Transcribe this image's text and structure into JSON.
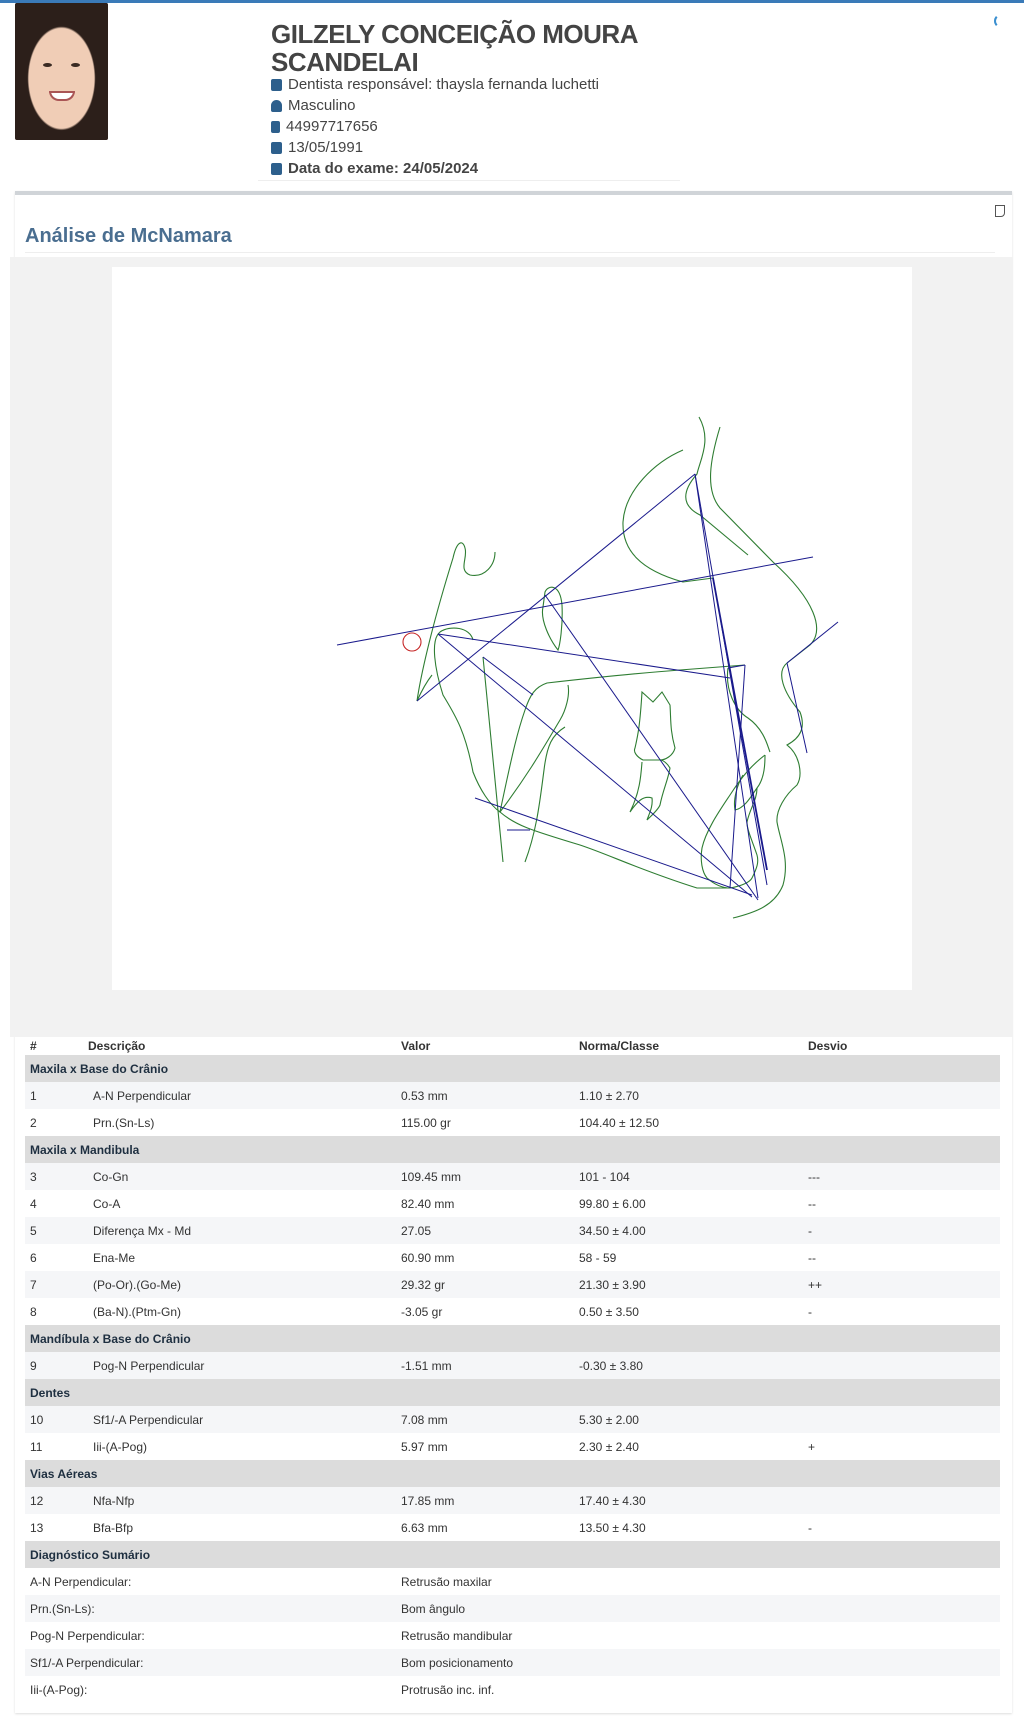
{
  "patient": {
    "name": "GILZELY CONCEIÇÃO MOURA SCANDELAI",
    "dentist": "Dentista responsável: thaysla fernanda luchetti",
    "sex": "Masculino",
    "phone": "44997717656",
    "birth": "13/05/1991",
    "exam_date": "Data do exame: 24/05/2024"
  },
  "icons": {
    "dentist": "tooth-icon",
    "sex": "user-icon",
    "phone": "mobile-icon",
    "birth": "calendar-icon",
    "exam": "calendar-icon",
    "loading": "spinner-icon",
    "doc": "document-icon"
  },
  "colors": {
    "accent": "#3a7ab8",
    "title": "#4a6e90",
    "tracing_anatomy": "#2e7d32",
    "tracing_lines": "#1a1a8c",
    "marker": "#c62828"
  },
  "card": {
    "title": "Análise de McNamara"
  },
  "table": {
    "headers": [
      "#",
      "Descrição",
      "Valor",
      "Norma/Classe",
      "Desvio"
    ],
    "groups": [
      {
        "title": "Maxila x Base do Crânio",
        "rows": [
          [
            "1",
            "A-N Perpendicular",
            "0.53 mm",
            "1.10 ± 2.70",
            ""
          ],
          [
            "2",
            "Prn.(Sn-Ls)",
            "115.00 gr",
            "104.40 ± 12.50",
            ""
          ]
        ]
      },
      {
        "title": "Maxila x Mandibula",
        "rows": [
          [
            "3",
            "Co-Gn",
            "109.45 mm",
            "101 - 104",
            "---"
          ],
          [
            "4",
            "Co-A",
            "82.40 mm",
            "99.80 ± 6.00",
            "--"
          ],
          [
            "5",
            "Diferença Mx - Md",
            "27.05",
            "34.50 ± 4.00",
            "-"
          ],
          [
            "6",
            "Ena-Me",
            "60.90 mm",
            "58 - 59",
            "--"
          ],
          [
            "7",
            "(Po-Or).(Go-Me)",
            "29.32 gr",
            "21.30 ± 3.90",
            "++"
          ],
          [
            "8",
            "(Ba-N).(Ptm-Gn)",
            "-3.05 gr",
            "0.50 ± 3.50",
            "-"
          ]
        ]
      },
      {
        "title": "Mandíbula x Base do Crânio",
        "rows": [
          [
            "9",
            "Pog-N Perpendicular",
            "-1.51 mm",
            "-0.30 ± 3.80",
            ""
          ]
        ]
      },
      {
        "title": "Dentes",
        "rows": [
          [
            "10",
            "Sf1/-A Perpendicular",
            "7.08 mm",
            "5.30 ± 2.00",
            ""
          ],
          [
            "11",
            "Iii-(A-Pog)",
            "5.97 mm",
            "2.30 ± 2.40",
            "+"
          ]
        ]
      },
      {
        "title": "Vias Aéreas",
        "rows": [
          [
            "12",
            "Nfa-Nfp",
            "17.85 mm",
            "17.40 ± 4.30",
            ""
          ],
          [
            "13",
            "Bfa-Bfp",
            "6.63 mm",
            "13.50 ± 4.30",
            "-"
          ]
        ]
      }
    ],
    "summary": {
      "title": "Diagnóstico Sumário",
      "rows": [
        [
          "A-N Perpendicular:",
          "Retrusão maxilar"
        ],
        [
          "Prn.(Sn-Ls):",
          "Bom ângulo"
        ],
        [
          "Pog-N Perpendicular:",
          "Retrusão mandibular"
        ],
        [
          "Sf1/-A Perpendicular:",
          "Bom posicionamento"
        ],
        [
          "Iii-(A-Pog):",
          "Protrusão inc. inf."
        ]
      ]
    }
  }
}
